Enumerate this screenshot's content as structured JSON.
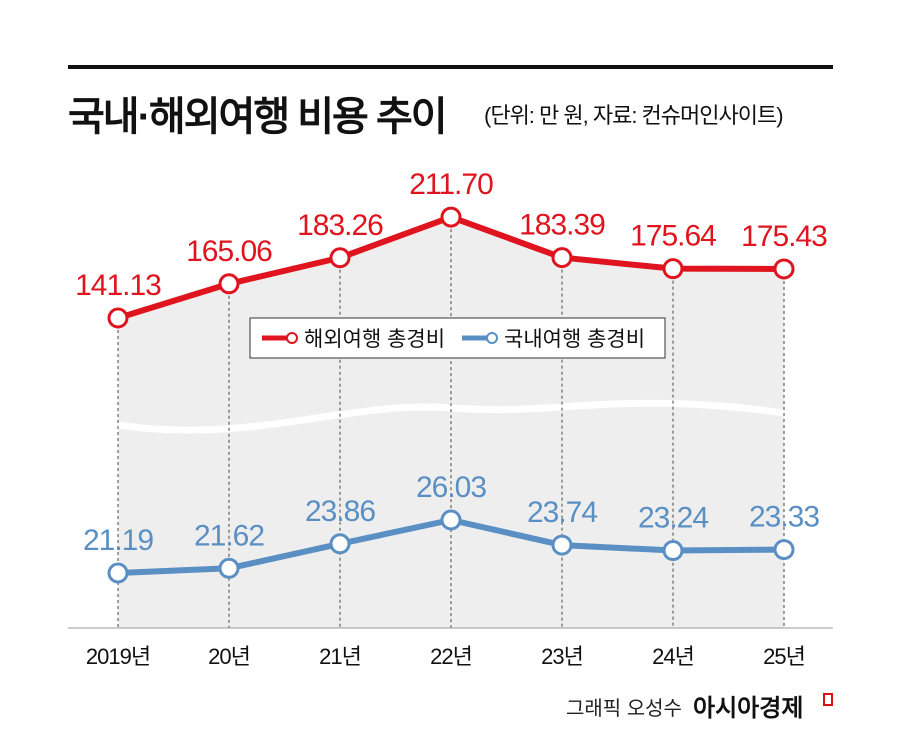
{
  "chart_data": {
    "type": "line",
    "title": "국내·해외여행 비용 추이",
    "subtitle": "(단위: 만 원, 자료: 컨슈머인사이트)",
    "categories": [
      "2019년",
      "20년",
      "21년",
      "22년",
      "23년",
      "24년",
      "25년"
    ],
    "series": [
      {
        "name": "해외여행 총경비",
        "color": "#e0141e",
        "values": [
          141.13,
          165.06,
          183.26,
          211.7,
          183.39,
          175.64,
          175.43
        ],
        "labels": [
          "141.13",
          "165.06",
          "183.26",
          "211.70",
          "183.39",
          "175.64",
          "175.43"
        ]
      },
      {
        "name": "국내여행 총경비",
        "color": "#5a8fc4",
        "values": [
          21.19,
          21.62,
          23.86,
          26.03,
          23.74,
          23.24,
          23.33
        ],
        "labels": [
          "21.19",
          "21.62",
          "23.86",
          "26.03",
          "23.74",
          "23.24",
          "23.33"
        ]
      }
    ],
    "legend": "center",
    "axis_break": true
  },
  "credit": "그래픽 오성수",
  "logo": "아시아경제"
}
